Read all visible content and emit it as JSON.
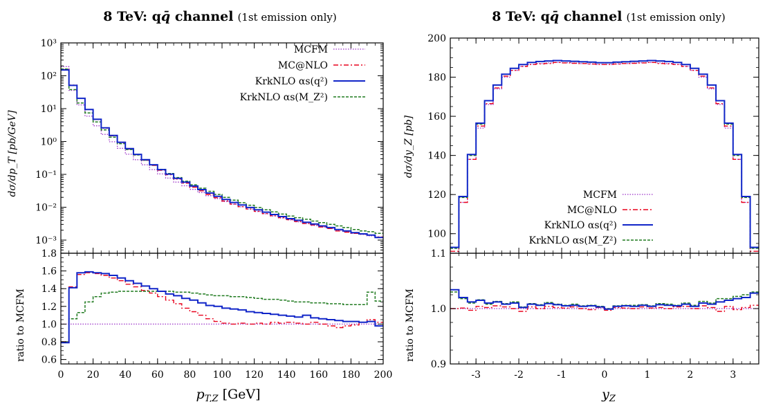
{
  "colors": {
    "mcfm": "#9b30c8",
    "mcnlo": "#e8001c",
    "krk_q2": "#1025c8",
    "krk_mz2": "#1f7a1f"
  },
  "legend_labels": {
    "mcfm": "MCFM",
    "mcnlo": "MC@NLO",
    "krk_q2": "KrkNLO αs(q²)",
    "krk_mz2": "KrkNLO αs(M_Z²)"
  },
  "chart_data": [
    {
      "type": "line",
      "panel": "left-main",
      "title": "8 TeV: qq̄ channel (1st emission only)",
      "title_main": "8 TeV: q",
      "title_qbar": "q̄",
      "title_rest": " channel",
      "title_note": "(1st emission only)",
      "ylabel": "dσ/dp_T [pb/GeV]",
      "xlim": [
        0,
        200
      ],
      "ylim_log10": [
        -3.4,
        3
      ],
      "yscale": "log",
      "ytick_labels": [
        "10⁻³",
        "10⁻²",
        "10⁻¹",
        "10⁰",
        "10¹",
        "10²",
        "10³"
      ],
      "ytick_exponents": [
        -3,
        -2,
        -1,
        0,
        1,
        2,
        3
      ],
      "legend": "top-right",
      "bin_edges": [
        0,
        5,
        10,
        15,
        20,
        25,
        30,
        35,
        40,
        45,
        50,
        55,
        60,
        65,
        70,
        75,
        80,
        85,
        90,
        95,
        100,
        105,
        110,
        115,
        120,
        125,
        130,
        135,
        140,
        145,
        150,
        155,
        160,
        165,
        170,
        175,
        180,
        185,
        190,
        195,
        200
      ],
      "series": [
        {
          "key": "mcfm",
          "name": "MCFM",
          "values": [
            190,
            36,
            13,
            5.9,
            3.0,
            1.65,
            0.98,
            0.62,
            0.41,
            0.28,
            0.195,
            0.14,
            0.103,
            0.077,
            0.058,
            0.045,
            0.035,
            0.028,
            0.0225,
            0.0182,
            0.0149,
            0.0123,
            0.0103,
            0.0087,
            0.0074,
            0.0063,
            0.0054,
            0.0047,
            0.0041,
            0.0036,
            0.0032,
            0.0028,
            0.0025,
            0.00225,
            0.002,
            0.0018,
            0.0016,
            0.00148,
            0.00135,
            0.00123
          ]
        },
        {
          "key": "mcnlo",
          "name": "MC@NLO",
          "values": [
            155,
            52,
            20.4,
            9.4,
            4.7,
            2.55,
            1.49,
            0.92,
            0.59,
            0.39,
            0.268,
            0.188,
            0.134,
            0.097,
            0.072,
            0.054,
            0.0405,
            0.0315,
            0.0245,
            0.0195,
            0.0155,
            0.0125,
            0.0104,
            0.0088,
            0.0075,
            0.0064,
            0.0055,
            0.0048,
            0.0042,
            0.0037,
            0.0032,
            0.0029,
            0.0025,
            0.00225,
            0.0019,
            0.00175,
            0.0016,
            0.00152,
            0.00142,
            0.00125
          ]
        },
        {
          "key": "krk_q2",
          "name": "KrkNLO αs(q²)",
          "values": [
            150,
            51,
            20.6,
            9.4,
            4.75,
            2.6,
            1.53,
            0.95,
            0.61,
            0.405,
            0.28,
            0.196,
            0.14,
            0.102,
            0.076,
            0.058,
            0.044,
            0.0345,
            0.027,
            0.0215,
            0.0172,
            0.014,
            0.0117,
            0.0098,
            0.0083,
            0.0071,
            0.006,
            0.0052,
            0.0045,
            0.004,
            0.0035,
            0.0031,
            0.0027,
            0.0024,
            0.0021,
            0.0019,
            0.00168,
            0.00155,
            0.00142,
            0.0012
          ]
        },
        {
          "key": "krk_mz2",
          "name": "KrkNLO αs(M_Z²)",
          "values": [
            160,
            38,
            14.8,
            7.4,
            3.95,
            2.25,
            1.35,
            0.86,
            0.57,
            0.39,
            0.27,
            0.193,
            0.142,
            0.106,
            0.08,
            0.062,
            0.048,
            0.038,
            0.0305,
            0.0245,
            0.0199,
            0.0164,
            0.0137,
            0.0115,
            0.0098,
            0.0084,
            0.0072,
            0.0062,
            0.0054,
            0.0048,
            0.0043,
            0.0038,
            0.0034,
            0.003,
            0.0027,
            0.0024,
            0.0021,
            0.0019,
            0.0018,
            0.0016
          ]
        }
      ]
    },
    {
      "type": "line",
      "panel": "left-ratio",
      "ylabel": "ratio to MCFM",
      "xlabel_main": "p",
      "xlabel_sub": "T,Z",
      "xlabel_unit": "[GeV]",
      "xlim": [
        0,
        200
      ],
      "ylim": [
        0.55,
        1.8
      ],
      "ytick_labels": [
        "0.6",
        "0.8",
        "1.0",
        "1.2",
        "1.4",
        "1.6",
        "1.8"
      ],
      "yticks": [
        0.6,
        0.8,
        1.0,
        1.2,
        1.4,
        1.6,
        1.8
      ],
      "xtick_labels": [
        "0",
        "20",
        "40",
        "60",
        "80",
        "100",
        "120",
        "140",
        "160",
        "180",
        "200"
      ],
      "xticks": [
        0,
        20,
        40,
        60,
        80,
        100,
        120,
        140,
        160,
        180,
        200
      ],
      "bin_edges": [
        0,
        5,
        10,
        15,
        20,
        25,
        30,
        35,
        40,
        45,
        50,
        55,
        60,
        65,
        70,
        75,
        80,
        85,
        90,
        95,
        100,
        105,
        110,
        115,
        120,
        125,
        130,
        135,
        140,
        145,
        150,
        155,
        160,
        165,
        170,
        175,
        180,
        185,
        190,
        195,
        200
      ],
      "series": [
        {
          "key": "mcfm",
          "values": [
            1.0,
            1.0,
            1.0,
            1.0,
            1.0,
            1.0,
            1.0,
            1.0,
            1.0,
            1.0,
            1.0,
            1.0,
            1.0,
            1.0,
            1.0,
            1.0,
            1.0,
            1.0,
            1.0,
            1.0,
            1.0,
            1.0,
            1.0,
            1.0,
            1.0,
            1.0,
            1.0,
            1.0,
            1.0,
            1.0,
            1.0,
            1.0,
            1.0,
            1.0,
            1.0,
            1.0,
            1.0,
            1.0,
            1.0,
            1.0
          ]
        },
        {
          "key": "mcnlo",
          "values": [
            0.8,
            1.42,
            1.56,
            1.58,
            1.57,
            1.55,
            1.52,
            1.49,
            1.45,
            1.42,
            1.38,
            1.35,
            1.31,
            1.27,
            1.23,
            1.18,
            1.14,
            1.1,
            1.06,
            1.03,
            1.01,
            1.0,
            1.01,
            1.0,
            1.01,
            1.0,
            1.02,
            1.01,
            1.02,
            1.01,
            1.0,
            1.02,
            1.0,
            0.98,
            0.96,
            0.98,
            0.99,
            1.02,
            1.05,
            1.02
          ]
        },
        {
          "key": "krk_q2",
          "values": [
            0.79,
            1.41,
            1.58,
            1.59,
            1.58,
            1.57,
            1.55,
            1.52,
            1.49,
            1.46,
            1.43,
            1.4,
            1.37,
            1.34,
            1.32,
            1.29,
            1.27,
            1.24,
            1.21,
            1.2,
            1.18,
            1.17,
            1.16,
            1.14,
            1.13,
            1.12,
            1.11,
            1.1,
            1.09,
            1.08,
            1.1,
            1.07,
            1.06,
            1.05,
            1.04,
            1.03,
            1.03,
            1.02,
            1.03,
            0.98
          ]
        },
        {
          "key": "krk_mz2",
          "values": [
            0.8,
            1.06,
            1.13,
            1.25,
            1.31,
            1.35,
            1.36,
            1.37,
            1.37,
            1.37,
            1.37,
            1.37,
            1.37,
            1.37,
            1.36,
            1.36,
            1.35,
            1.34,
            1.33,
            1.32,
            1.32,
            1.31,
            1.31,
            1.3,
            1.29,
            1.28,
            1.28,
            1.27,
            1.26,
            1.25,
            1.25,
            1.24,
            1.24,
            1.23,
            1.23,
            1.22,
            1.22,
            1.22,
            1.36,
            1.26
          ]
        }
      ]
    },
    {
      "type": "line",
      "panel": "right-main",
      "title": "8 TeV: qq̄ channel (1st emission only)",
      "title_main": "8 TeV: q",
      "title_qbar": "q̄",
      "title_rest": " channel",
      "title_note": "(1st emission only)",
      "ylabel": "dσ/dy_Z [pb]",
      "xlim": [
        -3.6,
        3.6
      ],
      "ylim": [
        90,
        200
      ],
      "ytick_labels": [
        "100",
        "120",
        "140",
        "160",
        "180",
        "200"
      ],
      "yticks": [
        100,
        120,
        140,
        160,
        180,
        200
      ],
      "legend": "bottom-right",
      "bin_edges": [
        -3.6,
        -3.4,
        -3.2,
        -3.0,
        -2.8,
        -2.6,
        -2.4,
        -2.2,
        -2.0,
        -1.8,
        -1.6,
        -1.4,
        -1.2,
        -1.0,
        -0.8,
        -0.6,
        -0.4,
        -0.2,
        0.0,
        0.2,
        0.4,
        0.6,
        0.8,
        1.0,
        1.2,
        1.4,
        1.6,
        1.8,
        2.0,
        2.2,
        2.4,
        2.6,
        2.8,
        3.0,
        3.2,
        3.4,
        3.6
      ],
      "series": [
        {
          "key": "mcfm",
          "name": "MCFM",
          "values": [
            90,
            116,
            138,
            154,
            166,
            174,
            180,
            183.5,
            185.5,
            186.5,
            187,
            187.3,
            187.5,
            187.4,
            187.2,
            187,
            186.8,
            186.5,
            186.5,
            186.8,
            187,
            187.2,
            187.4,
            187.5,
            187.3,
            187,
            186.5,
            185.5,
            183.5,
            180,
            174,
            166,
            154,
            138,
            116,
            90
          ]
        },
        {
          "key": "mcnlo",
          "name": "MC@NLO",
          "values": [
            91,
            116,
            138,
            155,
            166.5,
            174.5,
            180.5,
            183.5,
            185.5,
            186.5,
            186.8,
            187,
            187.5,
            187.3,
            187.1,
            187,
            186.7,
            186.5,
            186.5,
            186.7,
            187,
            187.1,
            187.3,
            187.5,
            187,
            186.8,
            186.5,
            185.5,
            183.5,
            180.5,
            174.5,
            166.5,
            155,
            138,
            116,
            91
          ]
        },
        {
          "key": "krk_q2",
          "name": "KrkNLO αs(q²)",
          "values": [
            93,
            119,
            140.5,
            156.5,
            168,
            176,
            181.5,
            184.5,
            186.5,
            187.5,
            188,
            188.3,
            188.5,
            188.3,
            188.1,
            187.9,
            187.7,
            187.4,
            187.4,
            187.7,
            187.9,
            188.1,
            188.3,
            188.5,
            188.3,
            188,
            187.5,
            186.5,
            184.5,
            181.5,
            176,
            168,
            156.5,
            140.5,
            119,
            93
          ]
        },
        {
          "key": "krk_mz2",
          "name": "KrkNLO αs(M_Z²)",
          "values": [
            92.5,
            118.5,
            140,
            156,
            168,
            176,
            181.5,
            184.5,
            186.5,
            187.5,
            188,
            188.2,
            188.4,
            188.2,
            188,
            187.8,
            187.6,
            187.3,
            187.3,
            187.6,
            187.8,
            188,
            188.2,
            188.4,
            188.2,
            188,
            187.5,
            186.5,
            184.5,
            181.5,
            176,
            168,
            156,
            140,
            118.5,
            92.5
          ]
        }
      ]
    },
    {
      "type": "line",
      "panel": "right-ratio",
      "ylabel": "ratio to MCFM",
      "xlabel_main": "y",
      "xlabel_sub": "Z",
      "xlim": [
        -3.6,
        3.6
      ],
      "ylim": [
        0.9,
        1.1
      ],
      "ytick_labels": [
        "0.9",
        "1.0",
        "1.1"
      ],
      "yticks": [
        0.9,
        1.0,
        1.1
      ],
      "xtick_labels": [
        "-3",
        "-2",
        "-1",
        "0",
        "1",
        "2",
        "3"
      ],
      "xticks": [
        -3,
        -2,
        -1,
        0,
        1,
        2,
        3
      ],
      "bin_edges": [
        -3.6,
        -3.4,
        -3.2,
        -3.0,
        -2.8,
        -2.6,
        -2.4,
        -2.2,
        -2.0,
        -1.8,
        -1.6,
        -1.4,
        -1.2,
        -1.0,
        -0.8,
        -0.6,
        -0.4,
        -0.2,
        0.0,
        0.2,
        0.4,
        0.6,
        0.8,
        1.0,
        1.2,
        1.4,
        1.6,
        1.8,
        2.0,
        2.2,
        2.4,
        2.6,
        2.8,
        3.0,
        3.2,
        3.4,
        3.6
      ],
      "series": [
        {
          "key": "mcfm",
          "values": [
            1.0,
            1.0,
            1.0,
            1.0,
            1.0,
            1.0,
            1.0,
            1.0,
            1.0,
            1.0,
            1.0,
            1.0,
            1.0,
            1.0,
            1.0,
            1.0,
            1.0,
            1.0,
            1.0,
            1.0,
            1.0,
            1.0,
            1.0,
            1.0,
            1.0,
            1.0,
            1.0,
            1.0,
            1.0,
            1.0,
            1.0,
            1.0,
            1.0,
            1.0,
            1.0,
            1.0
          ]
        },
        {
          "key": "mcnlo",
          "values": [
            1.0,
            1.001,
            0.997,
            1.004,
            1.002,
            1.005,
            1.003,
            1.0,
            0.995,
            1.003,
            1.0,
            1.004,
            1.002,
            1.001,
            1.003,
            1.0,
            0.998,
            1.002,
            0.997,
            1.002,
            1.001,
            1.0,
            1.003,
            1.001,
            1.002,
            1.0,
            1.003,
            1.004,
            1.0,
            1.005,
            1.002,
            0.995,
            1.004,
            0.998,
            1.002,
            1.006
          ]
        },
        {
          "key": "krk_q2",
          "values": [
            1.034,
            1.02,
            1.012,
            1.015,
            1.01,
            1.012,
            1.008,
            1.01,
            1.002,
            1.008,
            1.006,
            1.009,
            1.007,
            1.005,
            1.006,
            1.004,
            1.005,
            1.003,
            0.999,
            1.004,
            1.005,
            1.004,
            1.006,
            1.004,
            1.007,
            1.006,
            1.005,
            1.008,
            1.004,
            1.01,
            1.008,
            1.012,
            1.015,
            1.018,
            1.02,
            1.028
          ]
        },
        {
          "key": "krk_mz2",
          "values": [
            1.03,
            1.018,
            1.01,
            1.016,
            1.008,
            1.013,
            1.009,
            1.012,
            1.003,
            1.009,
            1.007,
            1.011,
            1.008,
            1.006,
            1.008,
            1.005,
            1.006,
            1.004,
            1.0,
            1.005,
            1.006,
            1.006,
            1.007,
            1.005,
            1.009,
            1.008,
            1.006,
            1.01,
            1.006,
            1.013,
            1.01,
            1.018,
            1.018,
            1.022,
            1.025,
            1.03
          ]
        }
      ]
    }
  ]
}
